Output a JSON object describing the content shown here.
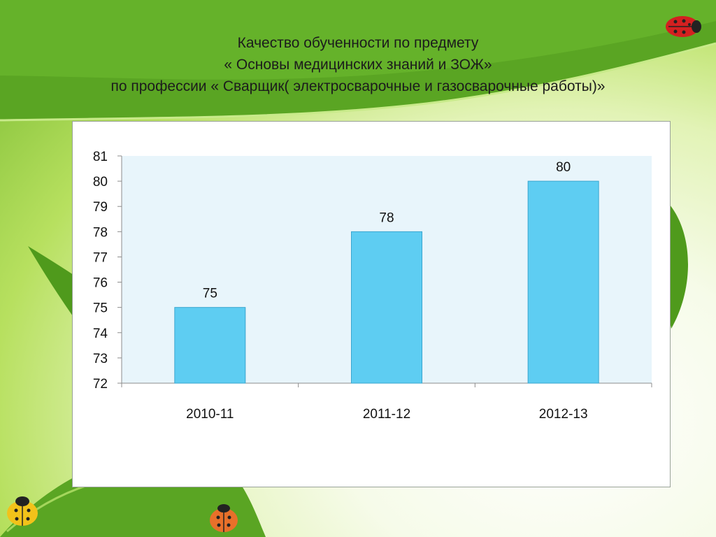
{
  "slide": {
    "title_lines": [
      "Качество обученности по предмету",
      "« Основы медицинских знаний и ЗОЖ»",
      "по профессии « Сварщик( электросварочные и газосварочные работы)»"
    ]
  },
  "colors": {
    "bar_fill": "#5ecdf2",
    "bar_stroke": "#3aa6cf",
    "plot_bg": "#e8f5fb",
    "leaf_green": "#4f9a1c",
    "ladybug_red": "#d42020",
    "ladybug_yellow": "#f2c21a",
    "ladybug_orange": "#e8702a"
  },
  "icons": [
    "ladybug-icon"
  ],
  "chart_data": {
    "type": "bar",
    "title": "",
    "xlabel": "",
    "ylabel": "",
    "categories": [
      "2010-11",
      "2011-12",
      "2012-13"
    ],
    "values": [
      75,
      78,
      80
    ],
    "data_labels": [
      "75",
      "78",
      "80"
    ],
    "ylim": [
      72,
      81
    ],
    "yticks": [
      72,
      73,
      74,
      75,
      76,
      77,
      78,
      79,
      80,
      81
    ],
    "grid": false,
    "legend": "none"
  }
}
